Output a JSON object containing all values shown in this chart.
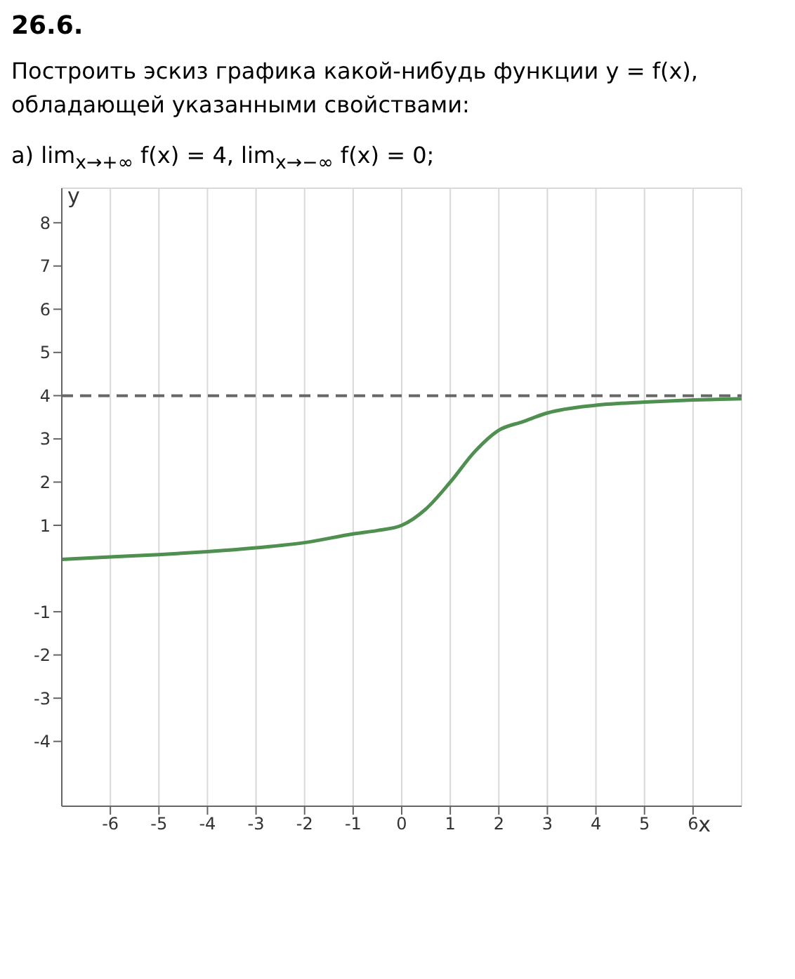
{
  "chart_data": {
    "type": "line",
    "title": "26.6.",
    "subtitle": "Построить эскиз графика какой-нибудь функции y = f(x), обладающей указанными свойствами:",
    "annotations": [
      "а) lim$_{x→+∞}$ f(x) = 4,   lim$_{x→−∞}$ f(x) = 0;"
    ],
    "xlabel": "x",
    "ylabel": "y",
    "x": [
      -7,
      -6,
      -5,
      -4,
      -3,
      -2,
      -1,
      -0.5,
      0,
      0.5,
      1,
      1.5,
      2,
      2.5,
      3,
      4,
      5,
      6,
      7
    ],
    "series": [
      {
        "color": "#4f8f4f",
        "values": [
          0.21,
          0.27,
          0.32,
          0.39,
          0.48,
          0.6,
          0.8,
          0.88,
          1,
          1.38,
          2,
          2.7,
          3.2,
          3.4,
          3.6,
          3.78,
          3.85,
          3.9,
          3.93
        ]
      }
    ],
    "xlim": [
      -7,
      7
    ],
    "xticks": [
      -6,
      -5,
      -4,
      -3,
      -2,
      -1,
      0,
      1,
      2,
      3,
      4,
      5,
      6
    ],
    "ylim": [
      -5.5,
      8.8
    ],
    "yticks": [
      -4,
      -3,
      -2,
      -1,
      1,
      2,
      3,
      4,
      5,
      6,
      7,
      8
    ],
    "ref_lines": [
      {
        "axis": "y",
        "value": 4,
        "color": "#666666",
        "line_style": "dashed"
      }
    ],
    "grid": true,
    "legend": false,
    "marker": "none",
    "line_style": "solid"
  }
}
